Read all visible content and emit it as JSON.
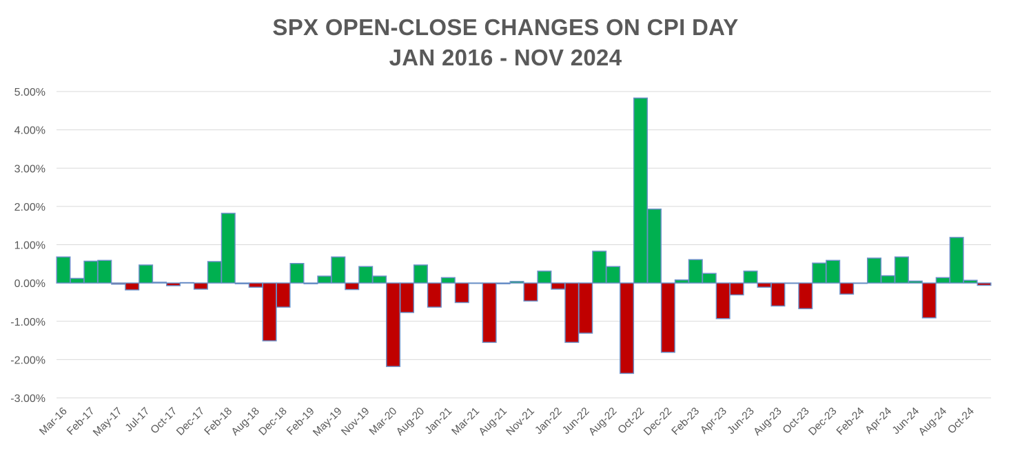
{
  "chart_data": {
    "type": "bar",
    "title": "SPX OPEN-CLOSE CHANGES ON CPI DAY",
    "subtitle": "JAN 2016 - NOV 2024",
    "xlabel": "",
    "ylabel": "",
    "ylim": [
      -0.03,
      0.05
    ],
    "yticks": [
      "5.00%",
      "4.00%",
      "3.00%",
      "2.00%",
      "1.00%",
      "0.00%",
      "-1.00%",
      "-2.00%",
      "-3.00%"
    ],
    "ytick_values": [
      0.05,
      0.04,
      0.03,
      0.02,
      0.01,
      0.0,
      -0.01,
      -0.02,
      -0.03
    ],
    "grid": true,
    "legend": "none",
    "colors": {
      "positive": "#00b050",
      "negative": "#c00000",
      "bar_edge": "#6a8fc7",
      "grid": "#d9d9d9",
      "text": "#595959"
    },
    "xtick_labels": [
      "Mar-16",
      "Feb-17",
      "May-17",
      "Jul-17",
      "Oct-17",
      "Dec-17",
      "Feb-18",
      "Aug-18",
      "Dec-18",
      "Feb-19",
      "May-19",
      "Nov-19",
      "Mar-20",
      "Aug-20",
      "Jan-21",
      "Mar-21",
      "Aug-21",
      "Nov-21",
      "Jan-22",
      "Jun-22",
      "Aug-22",
      "Oct-22",
      "Dec-22",
      "Feb-23",
      "Apr-23",
      "Jun-23",
      "Aug-23",
      "Oct-23",
      "Dec-23",
      "Feb-24",
      "Apr-24",
      "Jun-24",
      "Aug-24",
      "Oct-24"
    ],
    "xtick_every": 2,
    "values": [
      0.0068,
      0.0012,
      0.0057,
      0.0059,
      -0.0003,
      -0.0018,
      0.0047,
      0.0002,
      -0.0007,
      0.0001,
      -0.0016,
      0.0056,
      0.0182,
      -0.0002,
      -0.0011,
      -0.0151,
      -0.0063,
      0.0051,
      -0.0002,
      0.0018,
      0.0068,
      -0.0017,
      0.0043,
      0.0018,
      -0.0218,
      -0.0077,
      0.0047,
      -0.0063,
      0.0014,
      -0.0051,
      -0.0001,
      -0.0155,
      -0.0002,
      0.0004,
      -0.0047,
      0.0031,
      -0.0016,
      -0.0155,
      -0.0131,
      0.0083,
      0.0043,
      -0.0236,
      0.0483,
      0.0193,
      -0.0181,
      0.0008,
      0.0061,
      0.0025,
      -0.0093,
      -0.0031,
      0.0031,
      -0.0011,
      -0.006,
      -0.0001,
      -0.0067,
      0.0052,
      0.0059,
      -0.0029,
      -0.0001,
      0.0065,
      0.0019,
      0.0068,
      0.0005,
      -0.0091,
      0.0014,
      0.0119,
      0.0007,
      -0.0006
    ]
  }
}
